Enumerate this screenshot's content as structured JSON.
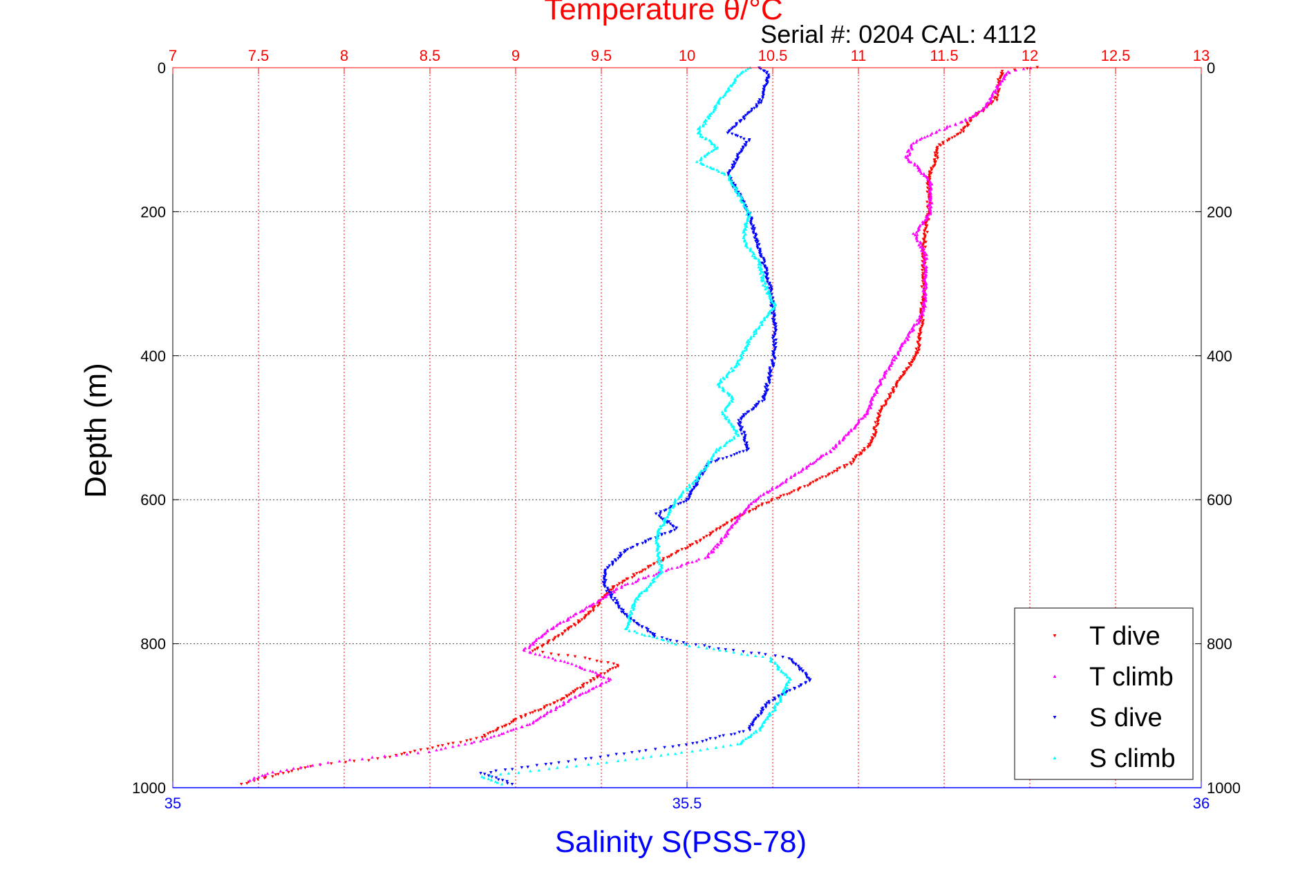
{
  "chart_data": {
    "type": "scatter",
    "title": "Temperature θ/°C",
    "subtitle": "Serial #: 0204  CAL: 4112",
    "ylabel": "Depth (m)",
    "xlabel": "Salinity S(PSS-78)",
    "y_axis": {
      "range": [
        0,
        1000
      ],
      "reversed": true,
      "ticks": [
        "0",
        "200",
        "400",
        "600",
        "800",
        "1000"
      ],
      "grid": true
    },
    "temperature_axis": {
      "position": "top",
      "color": "#ff0000",
      "range": [
        7,
        13
      ],
      "ticks": [
        "7",
        "7.5",
        "8",
        "8.5",
        "9",
        "9.5",
        "10",
        "10.5",
        "11",
        "11.5",
        "12",
        "12.5",
        "13"
      ],
      "grid": true
    },
    "salinity_axis": {
      "position": "bottom",
      "color": "#0000ff",
      "range": [
        35,
        36
      ],
      "ticks": [
        "35",
        "35.5",
        "36"
      ]
    },
    "legend": {
      "position": "bottom-right"
    },
    "series": [
      {
        "name": "T dive",
        "axis": "temperature",
        "color": "#ff0000",
        "marker": "triangle-down",
        "points": [
          [
            12.05,
            0
          ],
          [
            11.84,
            5
          ],
          [
            11.82,
            20
          ],
          [
            11.8,
            45
          ],
          [
            11.72,
            60
          ],
          [
            11.66,
            70
          ],
          [
            11.6,
            90
          ],
          [
            11.52,
            100
          ],
          [
            11.46,
            110
          ],
          [
            11.45,
            130
          ],
          [
            11.41,
            150
          ],
          [
            11.41,
            200
          ],
          [
            11.38,
            250
          ],
          [
            11.38,
            300
          ],
          [
            11.37,
            350
          ],
          [
            11.34,
            400
          ],
          [
            11.25,
            430
          ],
          [
            11.12,
            480
          ],
          [
            11.08,
            520
          ],
          [
            10.95,
            550
          ],
          [
            10.7,
            580
          ],
          [
            10.5,
            600
          ],
          [
            10.25,
            630
          ],
          [
            10.05,
            660
          ],
          [
            9.8,
            690
          ],
          [
            9.58,
            720
          ],
          [
            9.42,
            760
          ],
          [
            9.25,
            790
          ],
          [
            9.1,
            810
          ],
          [
            9.4,
            820
          ],
          [
            9.6,
            830
          ],
          [
            9.45,
            850
          ],
          [
            9.25,
            880
          ],
          [
            9.05,
            900
          ],
          [
            8.8,
            930
          ],
          [
            8.2,
            960
          ],
          [
            7.8,
            970
          ],
          [
            7.4,
            995
          ]
        ]
      },
      {
        "name": "T climb",
        "axis": "temperature",
        "color": "#ff00ff",
        "marker": "triangle-up",
        "points": [
          [
            12.0,
            0
          ],
          [
            11.88,
            5
          ],
          [
            11.82,
            25
          ],
          [
            11.74,
            55
          ],
          [
            11.65,
            70
          ],
          [
            11.45,
            90
          ],
          [
            11.32,
            105
          ],
          [
            11.28,
            125
          ],
          [
            11.35,
            140
          ],
          [
            11.42,
            160
          ],
          [
            11.42,
            200
          ],
          [
            11.33,
            230
          ],
          [
            11.39,
            260
          ],
          [
            11.39,
            300
          ],
          [
            11.38,
            340
          ],
          [
            11.3,
            370
          ],
          [
            11.22,
            400
          ],
          [
            11.12,
            440
          ],
          [
            11.05,
            480
          ],
          [
            10.85,
            530
          ],
          [
            10.6,
            570
          ],
          [
            10.4,
            600
          ],
          [
            10.3,
            625
          ],
          [
            10.22,
            650
          ],
          [
            10.12,
            680
          ],
          [
            9.85,
            700
          ],
          [
            9.62,
            720
          ],
          [
            9.42,
            750
          ],
          [
            9.2,
            780
          ],
          [
            9.05,
            810
          ],
          [
            9.35,
            830
          ],
          [
            9.55,
            850
          ],
          [
            9.3,
            880
          ],
          [
            9.1,
            910
          ],
          [
            8.8,
            935
          ],
          [
            8.5,
            950
          ],
          [
            7.9,
            965
          ],
          [
            7.55,
            980
          ],
          [
            7.45,
            990
          ]
        ]
      },
      {
        "name": "S dive",
        "axis": "salinity",
        "color": "#0000ff",
        "marker": "triangle-down",
        "points": [
          [
            35.57,
            0
          ],
          [
            35.58,
            10
          ],
          [
            35.57,
            50
          ],
          [
            35.54,
            90
          ],
          [
            35.56,
            100
          ],
          [
            35.55,
            120
          ],
          [
            35.54,
            150
          ],
          [
            35.56,
            200
          ],
          [
            35.57,
            250
          ],
          [
            35.58,
            300
          ],
          [
            35.585,
            350
          ],
          [
            35.585,
            400
          ],
          [
            35.575,
            460
          ],
          [
            35.55,
            490
          ],
          [
            35.56,
            530
          ],
          [
            35.52,
            550
          ],
          [
            35.5,
            600
          ],
          [
            35.47,
            620
          ],
          [
            35.49,
            640
          ],
          [
            35.44,
            670
          ],
          [
            35.42,
            700
          ],
          [
            35.42,
            720
          ],
          [
            35.44,
            760
          ],
          [
            35.47,
            790
          ],
          [
            35.5,
            800
          ],
          [
            35.6,
            820
          ],
          [
            35.62,
            850
          ],
          [
            35.58,
            880
          ],
          [
            35.56,
            920
          ],
          [
            35.5,
            940
          ],
          [
            35.4,
            960
          ],
          [
            35.3,
            980
          ],
          [
            35.33,
            995
          ]
        ]
      },
      {
        "name": "S climb",
        "axis": "salinity",
        "color": "#00ffff",
        "marker": "triangle-up",
        "points": [
          [
            35.56,
            0
          ],
          [
            35.55,
            10
          ],
          [
            35.53,
            50
          ],
          [
            35.51,
            90
          ],
          [
            35.53,
            110
          ],
          [
            35.51,
            130
          ],
          [
            35.54,
            150
          ],
          [
            35.56,
            200
          ],
          [
            35.555,
            240
          ],
          [
            35.57,
            270
          ],
          [
            35.575,
            300
          ],
          [
            35.585,
            330
          ],
          [
            35.56,
            380
          ],
          [
            35.55,
            410
          ],
          [
            35.53,
            440
          ],
          [
            35.545,
            460
          ],
          [
            35.535,
            480
          ],
          [
            35.55,
            510
          ],
          [
            35.53,
            530
          ],
          [
            35.51,
            570
          ],
          [
            35.49,
            600
          ],
          [
            35.47,
            650
          ],
          [
            35.475,
            700
          ],
          [
            35.45,
            740
          ],
          [
            35.44,
            780
          ],
          [
            35.49,
            800
          ],
          [
            35.58,
            820
          ],
          [
            35.6,
            850
          ],
          [
            35.59,
            880
          ],
          [
            35.57,
            920
          ],
          [
            35.55,
            940
          ],
          [
            35.45,
            960
          ],
          [
            35.3,
            985
          ],
          [
            35.32,
            995
          ]
        ]
      }
    ]
  }
}
